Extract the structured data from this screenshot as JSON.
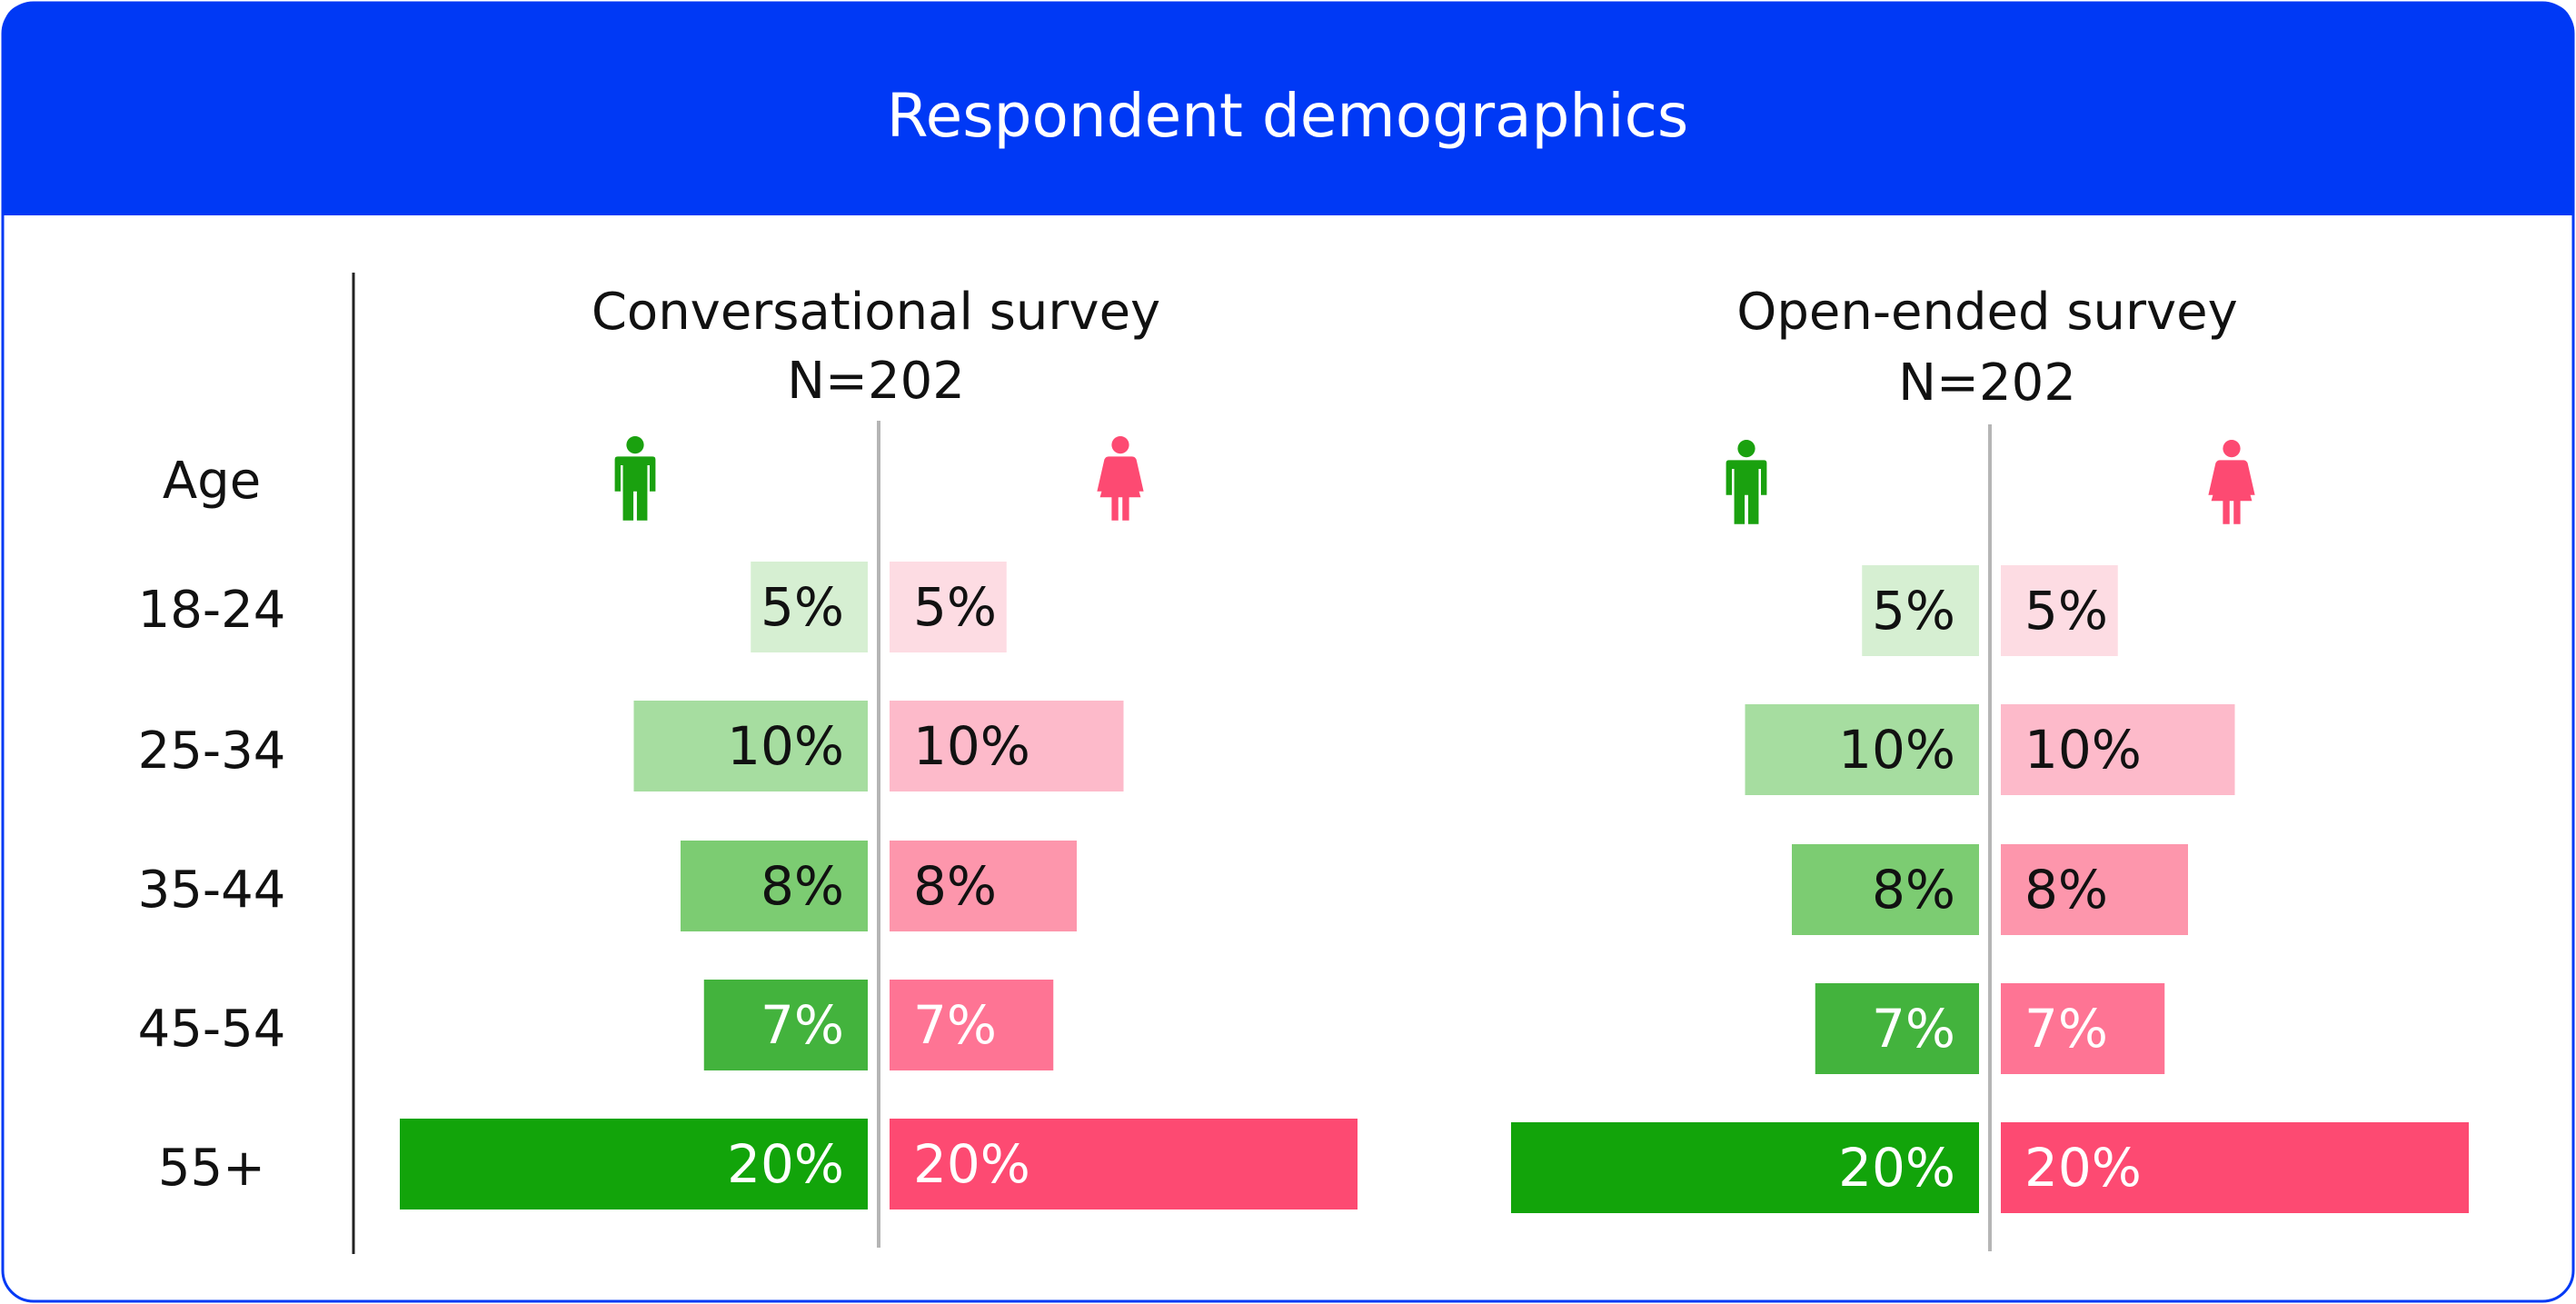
{
  "header": {
    "title": "Respondent demographics"
  },
  "colors": {
    "brand": "#0039F5",
    "male": [
      "#D6EFD2",
      "#A6DDA0",
      "#7CCC72",
      "#43B33D",
      "#12A40A"
    ],
    "female": [
      "#FDDCE3",
      "#FDBACA",
      "#FD96AC",
      "#FE7494",
      "#FD4A72"
    ],
    "male_icon": "#1AA10F",
    "female_icon": "#FD4A72"
  },
  "chart_data": [
    {
      "type": "bar",
      "title": "Conversational survey",
      "subtitle": "N=202",
      "category_header": "Age",
      "categories": [
        "18-24",
        "25-34",
        "35-44",
        "45-54",
        "55+"
      ],
      "series": [
        {
          "name": "",
          "icon": "male-icon",
          "values": [
            5,
            10,
            8,
            7,
            20
          ],
          "labels": [
            "5%",
            "10%",
            "8%",
            "7%",
            "20%"
          ]
        },
        {
          "name": "",
          "icon": "female-icon",
          "values": [
            5,
            10,
            8,
            7,
            20
          ],
          "labels": [
            "5%",
            "10%",
            "8%",
            "7%",
            "20%"
          ]
        }
      ]
    },
    {
      "type": "bar",
      "title": "Open-ended survey",
      "subtitle": "N=202",
      "categories": [
        "18-24",
        "25-34",
        "35-44",
        "45-54",
        "55+"
      ],
      "series": [
        {
          "name": "",
          "icon": "male-icon",
          "values": [
            5,
            10,
            8,
            7,
            20
          ],
          "labels": [
            "5%",
            "10%",
            "8%",
            "7%",
            "20%"
          ]
        },
        {
          "name": "",
          "icon": "female-icon",
          "values": [
            5,
            10,
            8,
            7,
            20
          ],
          "labels": [
            "5%",
            "10%",
            "8%",
            "7%",
            "20%"
          ]
        }
      ]
    }
  ]
}
